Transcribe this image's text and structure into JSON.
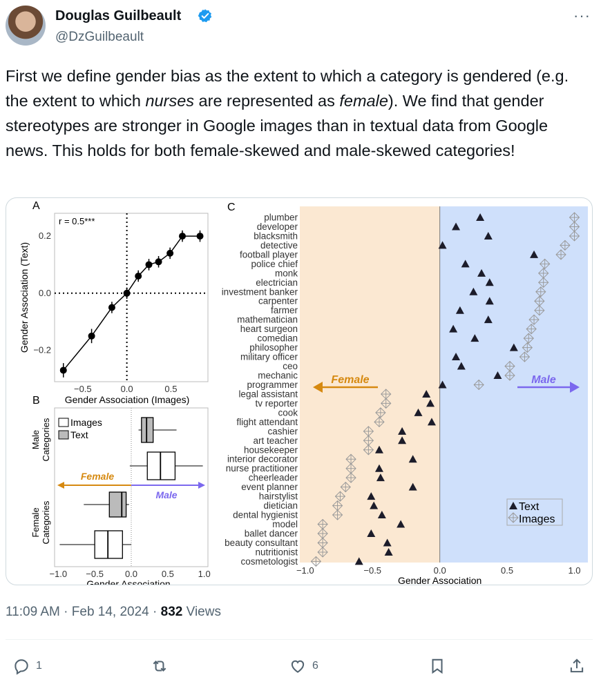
{
  "author": {
    "name": "Douglas Guilbeault",
    "handle": "@DzGuilbeault"
  },
  "post": {
    "text_part1": "First we define gender bias as the extent to which a category is gendered (e.g. the extent to which ",
    "text_em1": "nurses",
    "text_part2": " are represented as ",
    "text_em2": "female",
    "text_part3": "). We find that gender stereotypes are stronger in Google images than in textual data from Google news. This holds for both female-skewed and male-skewed categories!"
  },
  "meta": {
    "time": "11:09 AM",
    "sep1": " · ",
    "date": "Feb 14, 2024",
    "sep2": " · ",
    "views_count": "832",
    "views_label": " Views"
  },
  "actions": {
    "reply_count": "1",
    "like_count": "6"
  },
  "icons": {
    "verified": "verified-badge-icon",
    "more": "more-options-icon",
    "reply": "reply-icon",
    "repost": "repost-icon",
    "like": "heart-icon",
    "bookmark": "bookmark-icon",
    "share": "share-icon"
  },
  "colors": {
    "verified": "#1d9bf0",
    "female": "#d68910",
    "male": "#7b68ee",
    "female_bg": "#fbe8d2",
    "male_bg": "#cfe0fb"
  },
  "chart_data": [
    {
      "panel": "A",
      "type": "line",
      "annotation": "r = 0.5***",
      "xlabel": "Gender Association (Images)",
      "ylabel": "Gender Association (Text)",
      "xticks": [
        "−0.5",
        "0.0",
        "0.5"
      ],
      "yticks": [
        "0.2",
        "0.0",
        "−0.2"
      ],
      "xlim": [
        -0.82,
        0.92
      ],
      "ylim": [
        -0.31,
        0.28
      ],
      "x": [
        -0.72,
        -0.4,
        -0.17,
        0.0,
        0.13,
        0.25,
        0.36,
        0.49,
        0.63,
        0.83
      ],
      "y": [
        -0.27,
        -0.15,
        -0.05,
        0.0,
        0.06,
        0.1,
        0.11,
        0.14,
        0.2,
        0.2
      ],
      "err": [
        0.025,
        0.025,
        0.02,
        0.02,
        0.02,
        0.02,
        0.02,
        0.02,
        0.02,
        0.02
      ]
    },
    {
      "panel": "B",
      "type": "box",
      "xlabel": "Gender Association",
      "xticks": [
        "−1.0",
        "−0.5",
        "0.0",
        "0.5",
        "1.0"
      ],
      "xlim": [
        -1.05,
        1.05
      ],
      "legend": [
        "Images",
        "Text"
      ],
      "group_labels": [
        "Male Categories",
        "Female Categories"
      ],
      "arrow_female": "Female",
      "arrow_male": "Male",
      "boxes": [
        {
          "group": "Male Categories",
          "kind": "Text",
          "whisker_low": 0.1,
          "q1": 0.14,
          "median": 0.21,
          "q3": 0.3,
          "whisker_high": 0.62
        },
        {
          "group": "Male Categories",
          "kind": "Images",
          "whisker_low": -0.02,
          "q1": 0.22,
          "median": 0.4,
          "q3": 0.6,
          "whisker_high": 0.98
        },
        {
          "group": "Female Categories",
          "kind": "Text",
          "whisker_low": -0.65,
          "q1": -0.3,
          "median": -0.13,
          "q3": -0.07,
          "whisker_high": -0.03
        },
        {
          "group": "Female Categories",
          "kind": "Images",
          "whisker_low": -0.98,
          "q1": -0.5,
          "median": -0.32,
          "q3": -0.12,
          "whisker_high": 0.0
        }
      ]
    },
    {
      "panel": "C",
      "type": "scatter",
      "xlabel": "Gender Association",
      "xticks": [
        "−1.0",
        "−0.5",
        "0.0",
        "0.5",
        "1.0"
      ],
      "xlim": [
        -1.04,
        1.1
      ],
      "legend": [
        "Text",
        "Images"
      ],
      "arrow_female": "Female",
      "arrow_male": "Male",
      "categories": [
        "plumber",
        "developer",
        "blacksmith",
        "detective",
        "football player",
        "police chief",
        "monk",
        "electrician",
        "investment banker",
        "carpenter",
        "farmer",
        "mathematician",
        "heart surgeon",
        "comedian",
        "philosopher",
        "military officer",
        "ceo",
        "mechanic",
        "programmer",
        "legal assistant",
        "tv reporter",
        "cook",
        "flight attendant",
        "cashier",
        "art teacher",
        "housekeeper",
        "interior decorator",
        "nurse practitioner",
        "cheerleader",
        "event planner",
        "hairstylist",
        "dietician",
        "dental hygienist",
        "model",
        "ballet dancer",
        "beauty consultant",
        "nutritionist",
        "cosmetologist"
      ],
      "text_values": [
        0.3,
        0.12,
        0.36,
        0.02,
        0.7,
        0.19,
        0.31,
        0.37,
        0.25,
        0.37,
        0.15,
        0.36,
        0.1,
        0.26,
        0.55,
        0.12,
        0.16,
        0.43,
        0.02,
        -0.1,
        -0.07,
        -0.16,
        -0.06,
        -0.28,
        -0.28,
        -0.45,
        -0.2,
        -0.45,
        -0.44,
        -0.2,
        -0.51,
        -0.49,
        -0.43,
        -0.29,
        -0.51,
        -0.39,
        -0.38,
        -0.6
      ],
      "image_values": [
        1.0,
        1.0,
        1.0,
        0.93,
        0.9,
        0.78,
        0.77,
        0.77,
        0.75,
        0.74,
        0.74,
        0.7,
        0.68,
        0.66,
        0.65,
        0.63,
        0.52,
        0.52,
        0.29,
        -0.4,
        -0.4,
        -0.44,
        -0.45,
        -0.53,
        -0.53,
        -0.53,
        -0.66,
        -0.66,
        -0.66,
        -0.7,
        -0.74,
        -0.76,
        -0.76,
        -0.87,
        -0.87,
        -0.87,
        -0.87,
        -0.92
      ]
    }
  ]
}
